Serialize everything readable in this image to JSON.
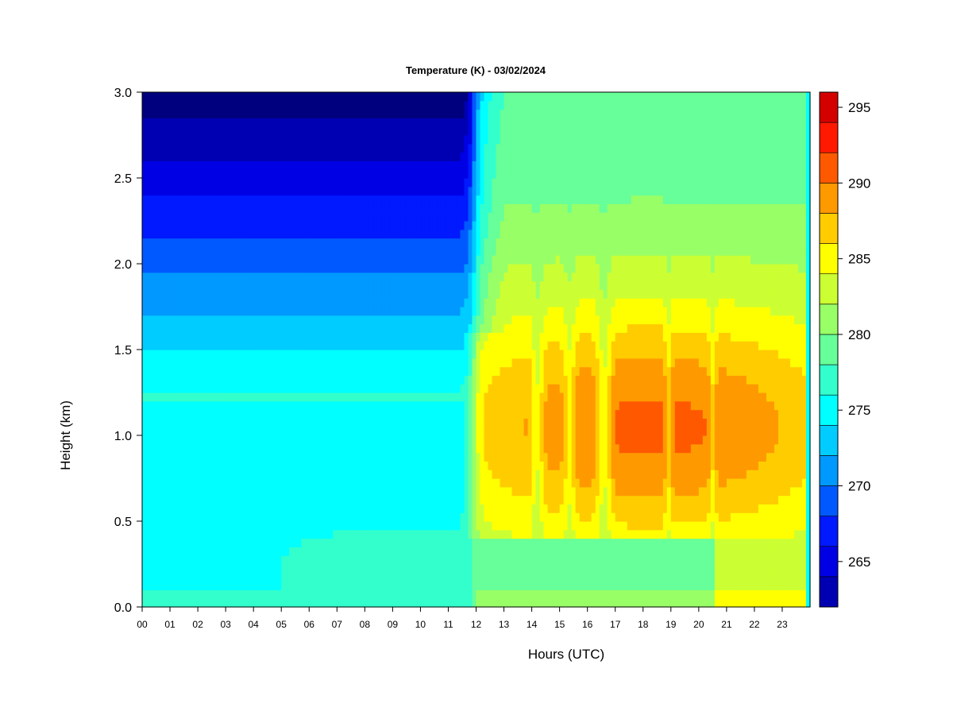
{
  "chart_data": {
    "type": "heatmap",
    "title": "Temperature (K) - 03/02/2024",
    "xlabel": "Hours (UTC)",
    "ylabel": "Height (km)",
    "x_ticks": [
      "00",
      "01",
      "02",
      "03",
      "04",
      "05",
      "06",
      "07",
      "08",
      "09",
      "10",
      "11",
      "12",
      "13",
      "14",
      "15",
      "16",
      "17",
      "18",
      "19",
      "20",
      "21",
      "22",
      "23"
    ],
    "xlim": [
      0,
      24
    ],
    "y_ticks": [
      "0.0",
      "0.5",
      "1.0",
      "1.5",
      "2.0",
      "2.5",
      "3.0"
    ],
    "ylim": [
      0,
      3
    ],
    "hours": [
      0,
      0.5,
      1,
      1.5,
      2,
      2.5,
      3,
      3.5,
      4,
      4.5,
      5,
      5.5,
      6,
      6.5,
      7,
      7.5,
      8,
      8.5,
      9,
      9.5,
      10,
      10.5,
      11,
      11.5,
      12,
      12.5,
      13,
      13.5,
      14,
      14.5,
      15,
      15.5,
      16,
      16.5,
      17,
      17.5,
      18,
      18.5,
      19,
      19.5,
      20,
      20.5,
      21,
      21.5,
      22,
      22.5,
      23,
      23.5,
      24
    ],
    "heights_km": [
      0,
      0.1,
      0.2,
      0.3,
      0.4,
      0.5,
      0.6,
      0.7,
      0.8,
      0.9,
      1.0,
      1.1,
      1.2,
      1.3,
      1.4,
      1.5,
      1.6,
      1.7,
      1.8,
      1.9,
      2.0,
      2.1,
      2.2,
      2.3,
      2.4,
      2.5,
      2.6,
      2.7,
      2.8,
      2.9,
      3.0
    ],
    "colorbar": {
      "levels": [
        262,
        264,
        266,
        268,
        270,
        272,
        274,
        276,
        278,
        280,
        282,
        284,
        286,
        288,
        290,
        292,
        294,
        296
      ],
      "colors": [
        "#00007f",
        "#0000b2",
        "#0000e5",
        "#0019ff",
        "#0059ff",
        "#0099ff",
        "#00ccff",
        "#00ffff",
        "#33ffcc",
        "#66ff99",
        "#99ff66",
        "#ccff33",
        "#ffff00",
        "#ffcc00",
        "#ff9900",
        "#ff5900",
        "#ff1900",
        "#d40000",
        "#8b0000"
      ],
      "tick_labels": [
        "265",
        "270",
        "275",
        "280",
        "285",
        "290",
        "295"
      ],
      "tick_values": [
        265,
        270,
        275,
        280,
        285,
        290,
        295
      ]
    }
  }
}
